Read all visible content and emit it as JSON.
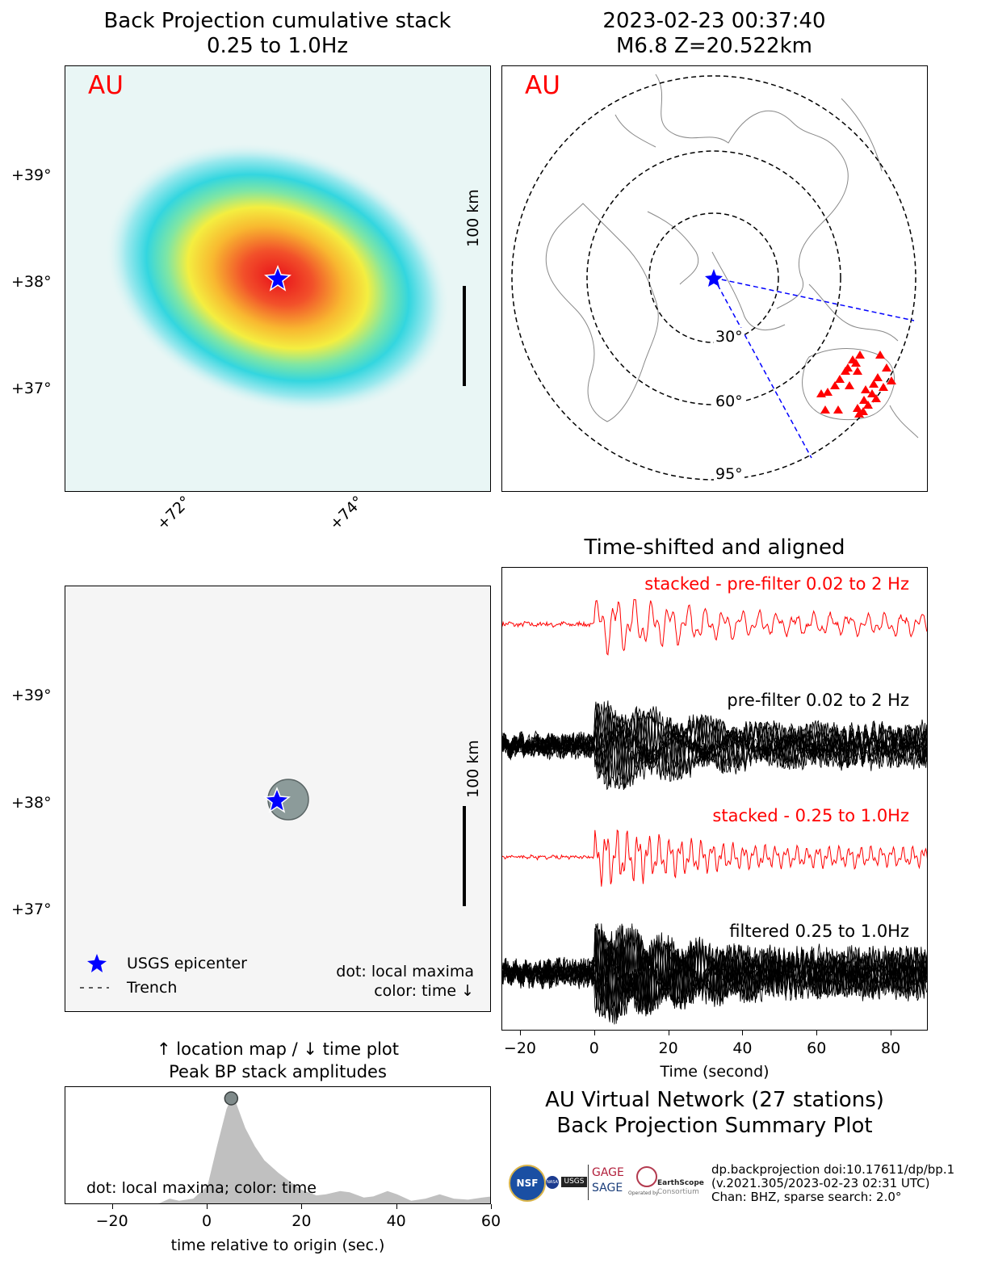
{
  "top_left": {
    "title_line1": "Back Projection cumulative stack",
    "title_line2": "0.25 to 1.0Hz",
    "network_label": "AU",
    "lat_ticks": [
      "+39°",
      "+38°",
      "+37°"
    ],
    "lon_ticks": [
      "+72°",
      "+74°"
    ],
    "scale_label": "100 km"
  },
  "top_right": {
    "title_line1": "2023-02-23 00:37:40",
    "title_line2": "M6.8 Z=20.522km",
    "network_label": "AU",
    "distance_rings": [
      "30°",
      "60°",
      "95°"
    ]
  },
  "mid_left": {
    "lat_ticks": [
      "+39°",
      "+38°",
      "+37°"
    ],
    "scale_label": "100 km",
    "legend": {
      "epicenter": "USGS epicenter",
      "trench": "Trench"
    },
    "note_line1": "dot: local maxima",
    "note_line2": "color: time ↓"
  },
  "bottom_left": {
    "title_line1": "↑ location map / ↓ time plot",
    "title_line2": "Peak BP stack amplitudes",
    "note": "dot: local maxima; color: time",
    "xlabel": "time relative to origin (sec.)"
  },
  "waveforms": {
    "title": "Time-shifted and aligned",
    "label_stack_raw": "stacked - pre-filter 0.02 to 2 Hz",
    "label_raw": "pre-filter 0.02 to 2 Hz",
    "label_stack_filt": "stacked - 0.25 to 1.0Hz",
    "label_filt": "filtered 0.25 to 1.0Hz",
    "xlabel": "Time (second)"
  },
  "summary": {
    "line1": "AU Virtual Network (27 stations)",
    "line2": "Back Projection Summary Plot"
  },
  "footer": {
    "line1": "dp.backprojection doi:10.17611/dp/bp.1",
    "line2": "(v.2021.305/2023-02-23 02:31 UTC)",
    "line3": "Chan: BHZ, sparse search: 2.0°"
  },
  "logos": {
    "nsf": "NSF",
    "nasa": "NASA",
    "usgs": "USGS",
    "gage": "GAGE",
    "sage": "SAGE",
    "operated": "Operated by",
    "earthscope": "EarthScope",
    "consortium": "Consortium"
  },
  "chart_data": [
    {
      "type": "heatmap",
      "title": "Back Projection cumulative stack 0.25 to 1.0Hz",
      "xlabel": "",
      "ylabel": "",
      "x_ticks": [
        "+72°",
        "+74°"
      ],
      "y_ticks": [
        "+39°",
        "+38°",
        "+37°"
      ],
      "peak": {
        "lon": 73.2,
        "lat": 38.05
      },
      "epicenter": {
        "lon": 73.2,
        "lat": 38.03
      },
      "colormap": "jet"
    },
    {
      "type": "scatter",
      "title": "",
      "xlabel": "",
      "ylabel": "",
      "y_ticks": [
        "+39°",
        "+38°",
        "+37°"
      ],
      "points": [
        {
          "lon": 73.4,
          "lat": 38.05,
          "time": 5
        }
      ],
      "epicenter": {
        "lon": 73.2,
        "lat": 38.03
      }
    },
    {
      "type": "area",
      "title": "Peak BP stack amplitudes",
      "xlabel": "time relative to origin (sec.)",
      "xlim": [
        -30,
        60
      ],
      "x_ticks": [
        -20,
        0,
        20,
        40,
        60
      ],
      "x": [
        -30,
        -12,
        -10,
        -8,
        -6,
        -3,
        0,
        2,
        4,
        5,
        6,
        8,
        10,
        12,
        15,
        18,
        20,
        23,
        25,
        28,
        30,
        33,
        35,
        38,
        40,
        43,
        46,
        49,
        52,
        55,
        58,
        60
      ],
      "values": [
        0,
        0,
        0.02,
        0.06,
        0.04,
        0.06,
        0.18,
        0.55,
        0.9,
        1.0,
        0.96,
        0.72,
        0.55,
        0.42,
        0.3,
        0.2,
        0.14,
        0.09,
        0.1,
        0.13,
        0.12,
        0.07,
        0.08,
        0.13,
        0.1,
        0.04,
        0.06,
        0.1,
        0.06,
        0.05,
        0.07,
        0.08
      ],
      "peak_dot": {
        "x": 5,
        "y": 1.0
      }
    },
    {
      "type": "line",
      "title": "Time-shifted and aligned",
      "xlabel": "Time (second)",
      "xlim": [
        -25,
        90
      ],
      "x_ticks": [
        -20,
        0,
        20,
        40,
        60,
        80
      ],
      "series": [
        {
          "name": "stacked - pre-filter 0.02 to 2 Hz",
          "color": "#ff0000"
        },
        {
          "name": "pre-filter 0.02 to 2 Hz",
          "color": "#000000"
        },
        {
          "name": "stacked - 0.25 to 1.0Hz",
          "color": "#ff0000"
        },
        {
          "name": "filtered 0.25 to 1.0Hz",
          "color": "#000000"
        }
      ]
    }
  ]
}
